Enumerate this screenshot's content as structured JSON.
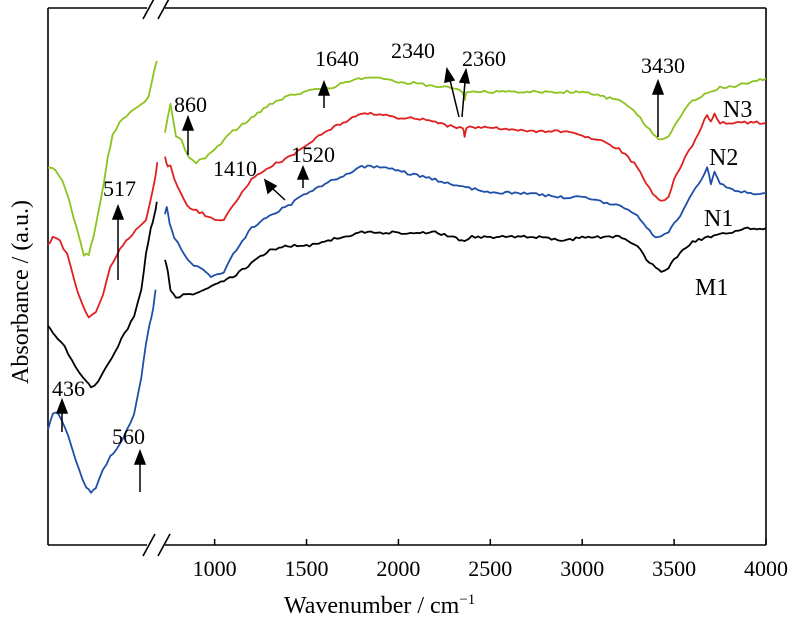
{
  "chart_data": {
    "type": "line",
    "title": "",
    "xlabel": "Wavenumber / cm",
    "xlabel_superscript": "−1",
    "ylabel": "Absorbance / (a.u.)",
    "x_ticks": [
      "1000",
      "1500",
      "2000",
      "2500",
      "3000",
      "3500",
      "4000"
    ],
    "x_break": "//",
    "xlim_main": [
      730,
      4000
    ],
    "xlim_inset": [
      300,
      760
    ],
    "series": [
      {
        "name": "N3",
        "color": "#8dc21f",
        "inset": [
          [
            300,
            0.86
          ],
          [
            330,
            0.85
          ],
          [
            360,
            0.83
          ],
          [
            390,
            0.78
          ],
          [
            420,
            0.72
          ],
          [
            450,
            0.66
          ],
          [
            470,
            0.66
          ],
          [
            490,
            0.7
          ],
          [
            520,
            0.78
          ],
          [
            550,
            0.88
          ],
          [
            570,
            0.93
          ],
          [
            600,
            0.96
          ],
          [
            640,
            0.98
          ],
          [
            690,
            1.0
          ],
          [
            720,
            1.02
          ],
          [
            745,
            1.08
          ],
          [
            755,
            1.1
          ]
        ],
        "main": [
          [
            730,
            0.94
          ],
          [
            760,
            1.0
          ],
          [
            790,
            0.93
          ],
          [
            820,
            0.92
          ],
          [
            860,
            0.88
          ],
          [
            900,
            0.87
          ],
          [
            950,
            0.88
          ],
          [
            1000,
            0.9
          ],
          [
            1100,
            0.94
          ],
          [
            1200,
            0.97
          ],
          [
            1300,
            1.0
          ],
          [
            1400,
            1.02
          ],
          [
            1500,
            1.03
          ],
          [
            1600,
            1.04
          ],
          [
            1640,
            1.04
          ],
          [
            1700,
            1.05
          ],
          [
            1800,
            1.06
          ],
          [
            1900,
            1.06
          ],
          [
            2000,
            1.05
          ],
          [
            2100,
            1.05
          ],
          [
            2200,
            1.04
          ],
          [
            2300,
            1.04
          ],
          [
            2350,
            1.03
          ],
          [
            2360,
            1.01
          ],
          [
            2370,
            1.03
          ],
          [
            2500,
            1.03
          ],
          [
            2700,
            1.03
          ],
          [
            2900,
            1.03
          ],
          [
            3000,
            1.03
          ],
          [
            3100,
            1.02
          ],
          [
            3200,
            1.01
          ],
          [
            3300,
            0.98
          ],
          [
            3350,
            0.95
          ],
          [
            3400,
            0.93
          ],
          [
            3430,
            0.92
          ],
          [
            3470,
            0.93
          ],
          [
            3500,
            0.95
          ],
          [
            3560,
            0.99
          ],
          [
            3600,
            1.01
          ],
          [
            3650,
            1.02
          ],
          [
            3700,
            1.03
          ],
          [
            3750,
            1.04
          ],
          [
            3800,
            1.04
          ],
          [
            3900,
            1.05
          ],
          [
            4000,
            1.06
          ]
        ]
      },
      {
        "name": "N2",
        "color": "#e02020",
        "inset": [
          [
            300,
            0.68
          ],
          [
            320,
            0.7
          ],
          [
            350,
            0.69
          ],
          [
            380,
            0.66
          ],
          [
            410,
            0.6
          ],
          [
            440,
            0.55
          ],
          [
            470,
            0.52
          ],
          [
            500,
            0.53
          ],
          [
            530,
            0.57
          ],
          [
            560,
            0.63
          ],
          [
            600,
            0.67
          ],
          [
            640,
            0.7
          ],
          [
            680,
            0.72
          ],
          [
            710,
            0.74
          ],
          [
            735,
            0.8
          ],
          [
            750,
            0.84
          ],
          [
            757,
            0.87
          ]
        ],
        "main": [
          [
            730,
            0.88
          ],
          [
            745,
            0.86
          ],
          [
            760,
            0.86
          ],
          [
            800,
            0.81
          ],
          [
            850,
            0.77
          ],
          [
            900,
            0.76
          ],
          [
            950,
            0.75
          ],
          [
            1000,
            0.74
          ],
          [
            1050,
            0.74
          ],
          [
            1100,
            0.77
          ],
          [
            1200,
            0.83
          ],
          [
            1300,
            0.86
          ],
          [
            1400,
            0.88
          ],
          [
            1500,
            0.91
          ],
          [
            1600,
            0.94
          ],
          [
            1700,
            0.96
          ],
          [
            1800,
            0.98
          ],
          [
            1900,
            0.98
          ],
          [
            2000,
            0.97
          ],
          [
            2100,
            0.97
          ],
          [
            2200,
            0.96
          ],
          [
            2300,
            0.95
          ],
          [
            2350,
            0.95
          ],
          [
            2360,
            0.93
          ],
          [
            2370,
            0.95
          ],
          [
            2500,
            0.95
          ],
          [
            2700,
            0.94
          ],
          [
            2900,
            0.94
          ],
          [
            3000,
            0.93
          ],
          [
            3100,
            0.92
          ],
          [
            3200,
            0.9
          ],
          [
            3300,
            0.86
          ],
          [
            3350,
            0.82
          ],
          [
            3400,
            0.79
          ],
          [
            3430,
            0.78
          ],
          [
            3470,
            0.79
          ],
          [
            3500,
            0.83
          ],
          [
            3560,
            0.88
          ],
          [
            3600,
            0.91
          ],
          [
            3650,
            0.95
          ],
          [
            3680,
            0.98
          ],
          [
            3700,
            0.96
          ],
          [
            3720,
            0.98
          ],
          [
            3750,
            0.96
          ],
          [
            3800,
            0.96
          ],
          [
            3900,
            0.96
          ],
          [
            4000,
            0.96
          ]
        ]
      },
      {
        "name": "N1",
        "color": "#1f4fa8",
        "inset": [
          [
            300,
            0.26
          ],
          [
            320,
            0.3
          ],
          [
            340,
            0.3
          ],
          [
            370,
            0.27
          ],
          [
            400,
            0.22
          ],
          [
            430,
            0.17
          ],
          [
            460,
            0.13
          ],
          [
            480,
            0.12
          ],
          [
            500,
            0.13
          ],
          [
            530,
            0.17
          ],
          [
            560,
            0.2
          ],
          [
            600,
            0.23
          ],
          [
            630,
            0.26
          ],
          [
            660,
            0.3
          ],
          [
            690,
            0.38
          ],
          [
            710,
            0.46
          ],
          [
            725,
            0.5
          ],
          [
            740,
            0.54
          ],
          [
            750,
            0.58
          ]
        ],
        "main": [
          [
            730,
            0.75
          ],
          [
            740,
            0.77
          ],
          [
            755,
            0.73
          ],
          [
            780,
            0.7
          ],
          [
            820,
            0.67
          ],
          [
            870,
            0.64
          ],
          [
            920,
            0.63
          ],
          [
            980,
            0.61
          ],
          [
            1050,
            0.62
          ],
          [
            1100,
            0.66
          ],
          [
            1200,
            0.72
          ],
          [
            1300,
            0.75
          ],
          [
            1400,
            0.77
          ],
          [
            1500,
            0.8
          ],
          [
            1600,
            0.82
          ],
          [
            1700,
            0.84
          ],
          [
            1800,
            0.86
          ],
          [
            1900,
            0.86
          ],
          [
            2000,
            0.85
          ],
          [
            2100,
            0.84
          ],
          [
            2200,
            0.83
          ],
          [
            2300,
            0.82
          ],
          [
            2400,
            0.81
          ],
          [
            2500,
            0.8
          ],
          [
            2700,
            0.8
          ],
          [
            2900,
            0.79
          ],
          [
            3000,
            0.79
          ],
          [
            3100,
            0.78
          ],
          [
            3200,
            0.77
          ],
          [
            3300,
            0.75
          ],
          [
            3350,
            0.72
          ],
          [
            3400,
            0.7
          ],
          [
            3430,
            0.7
          ],
          [
            3470,
            0.71
          ],
          [
            3500,
            0.73
          ],
          [
            3550,
            0.76
          ],
          [
            3600,
            0.8
          ],
          [
            3650,
            0.83
          ],
          [
            3680,
            0.86
          ],
          [
            3700,
            0.82
          ],
          [
            3720,
            0.85
          ],
          [
            3750,
            0.82
          ],
          [
            3800,
            0.81
          ],
          [
            3900,
            0.8
          ],
          [
            4000,
            0.8
          ]
        ]
      },
      {
        "name": "M1",
        "color": "#000000",
        "inset": [
          [
            300,
            0.5
          ],
          [
            320,
            0.48
          ],
          [
            340,
            0.47
          ],
          [
            370,
            0.45
          ],
          [
            400,
            0.42
          ],
          [
            430,
            0.39
          ],
          [
            460,
            0.37
          ],
          [
            480,
            0.36
          ],
          [
            510,
            0.37
          ],
          [
            540,
            0.4
          ],
          [
            580,
            0.44
          ],
          [
            620,
            0.48
          ],
          [
            660,
            0.52
          ],
          [
            690,
            0.58
          ],
          [
            710,
            0.66
          ],
          [
            730,
            0.72
          ],
          [
            745,
            0.75
          ],
          [
            755,
            0.78
          ]
        ],
        "main": [
          [
            730,
            0.65
          ],
          [
            745,
            0.62
          ],
          [
            760,
            0.58
          ],
          [
            790,
            0.56
          ],
          [
            830,
            0.57
          ],
          [
            900,
            0.57
          ],
          [
            1000,
            0.59
          ],
          [
            1100,
            0.61
          ],
          [
            1200,
            0.64
          ],
          [
            1300,
            0.67
          ],
          [
            1400,
            0.68
          ],
          [
            1500,
            0.68
          ],
          [
            1600,
            0.69
          ],
          [
            1700,
            0.7
          ],
          [
            1800,
            0.71
          ],
          [
            1900,
            0.71
          ],
          [
            2000,
            0.71
          ],
          [
            2200,
            0.71
          ],
          [
            2300,
            0.7
          ],
          [
            2360,
            0.69
          ],
          [
            2400,
            0.7
          ],
          [
            2600,
            0.7
          ],
          [
            2800,
            0.7
          ],
          [
            2900,
            0.69
          ],
          [
            3000,
            0.7
          ],
          [
            3100,
            0.7
          ],
          [
            3200,
            0.7
          ],
          [
            3300,
            0.68
          ],
          [
            3350,
            0.65
          ],
          [
            3400,
            0.63
          ],
          [
            3430,
            0.62
          ],
          [
            3470,
            0.63
          ],
          [
            3500,
            0.65
          ],
          [
            3550,
            0.67
          ],
          [
            3600,
            0.69
          ],
          [
            3700,
            0.7
          ],
          [
            3800,
            0.71
          ],
          [
            3900,
            0.72
          ],
          [
            4000,
            0.72
          ]
        ]
      }
    ],
    "annotations": [
      {
        "text": "517"
      },
      {
        "text": "436"
      },
      {
        "text": "560"
      },
      {
        "text": "860"
      },
      {
        "text": "1410"
      },
      {
        "text": "1520"
      },
      {
        "text": "1640"
      },
      {
        "text": "2340"
      },
      {
        "text": "2360"
      },
      {
        "text": "3430"
      }
    ],
    "series_labels": [
      "N3",
      "N2",
      "N1",
      "M1"
    ]
  }
}
